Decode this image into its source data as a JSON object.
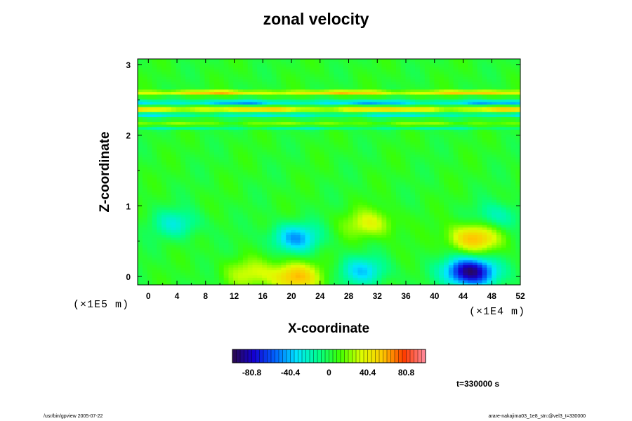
{
  "chart_data": {
    "type": "heatmap",
    "title": "zonal velocity",
    "xlabel": "X-coordinate",
    "ylabel": "Z-coordinate",
    "x_unit_label": "(×1E4 m)",
    "z_unit_label": "(×1E5 m)",
    "xlim": [
      -1.5,
      52
    ],
    "ylim": [
      -0.12,
      3.08
    ],
    "x_ticks": [
      "0",
      "4",
      "8",
      "12",
      "16",
      "20",
      "24",
      "28",
      "32",
      "36",
      "40",
      "44",
      "48",
      "52"
    ],
    "y_ticks": [
      "0",
      "1",
      "2",
      "3"
    ],
    "colorbar": {
      "range": [
        -101,
        101
      ],
      "tick_values": [
        -80.8,
        -40.4,
        0,
        40.4,
        80.8
      ],
      "tick_labels": [
        "-80.8",
        "-40.4",
        "0",
        "40.4",
        "80.8"
      ],
      "colors": [
        "#2a0a4a",
        "#1400d2",
        "#0064ff",
        "#00e6ff",
        "#00ff8c",
        "#3cff00",
        "#dcff00",
        "#ffc800",
        "#ff3c00",
        "#ff8ca0"
      ]
    },
    "features": [
      {
        "x": 45,
        "z": 0.07,
        "value": -101,
        "desc": "strong westward minimum"
      },
      {
        "x": 20.5,
        "z": 0.55,
        "value": -48
      },
      {
        "x": 30,
        "z": 0.08,
        "value": -38
      },
      {
        "x": 20.5,
        "z": 0.0,
        "value": 55
      },
      {
        "x": 45.5,
        "z": 0.55,
        "value": 55
      },
      {
        "x": 31,
        "z": 0.75,
        "value": 32
      },
      {
        "x": 14,
        "z": 0.05,
        "value": 26
      },
      {
        "x": 4,
        "z": 0.75,
        "value": -28
      },
      {
        "x": 49,
        "z": 0.85,
        "value": -25
      }
    ],
    "stripes": [
      {
        "z": 2.61,
        "value": 60
      },
      {
        "z": 2.47,
        "value": -60
      },
      {
        "z": 2.37,
        "value": 62
      },
      {
        "z": 2.29,
        "value": -38
      },
      {
        "z": 2.16,
        "value": 22
      },
      {
        "z": 2.11,
        "value": -22
      }
    ]
  },
  "time_label": "t=330000 s",
  "footer_left": "/usr/bin/gpview 2005-07-22",
  "footer_right": "arare-nakajima03_1e8_stn:@vel3_t=330000"
}
